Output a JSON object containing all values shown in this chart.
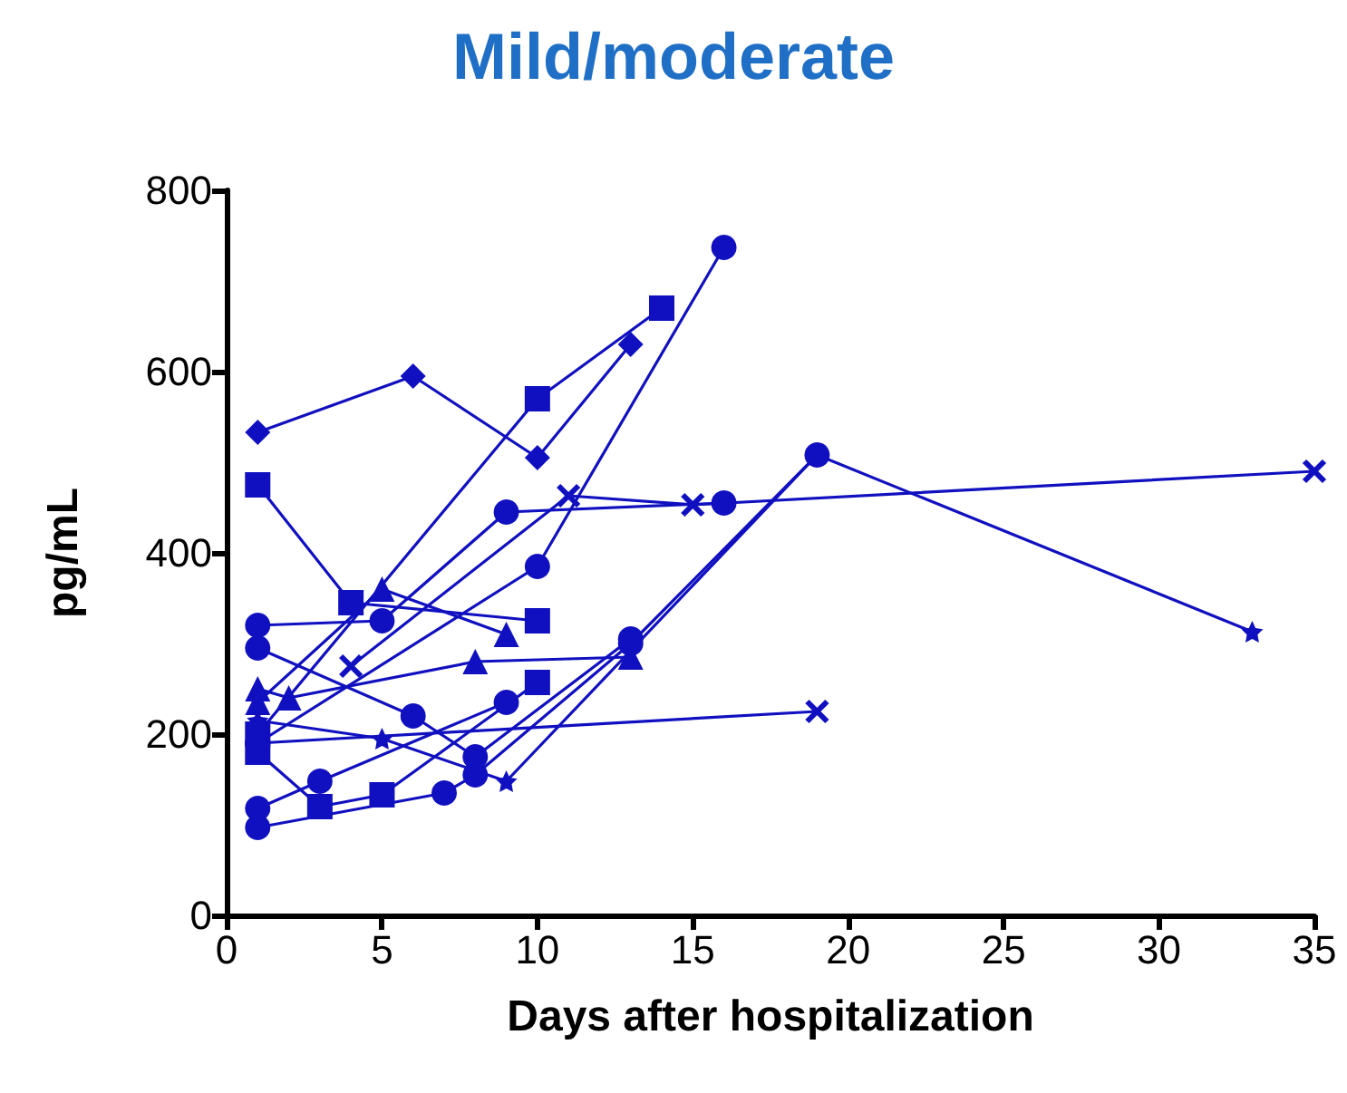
{
  "chart_data": {
    "type": "line",
    "title": "Mild/moderate",
    "xlabel": "Days after hospitalization",
    "ylabel": "pg/mL",
    "xlim": [
      0,
      35
    ],
    "xticks": [
      0,
      5,
      10,
      15,
      20,
      25,
      30,
      35
    ],
    "ylim": [
      0,
      800
    ],
    "yticks": [
      0,
      200,
      400,
      600,
      800
    ],
    "grid": false,
    "line_style": "solid",
    "series": [
      {
        "color": "#1010c0",
        "marker": "diamond",
        "x": [
          1,
          6,
          10,
          13
        ],
        "values": [
          533,
          595,
          505,
          630
        ]
      },
      {
        "color": "#1010c0",
        "marker": "square",
        "x": [
          1,
          10,
          14
        ],
        "values": [
          200,
          570,
          670
        ]
      },
      {
        "color": "#1010c0",
        "marker": "square",
        "x": [
          1,
          4,
          10
        ],
        "values": [
          475,
          345,
          325
        ]
      },
      {
        "color": "#1010c0",
        "marker": "circle",
        "x": [
          1,
          10,
          16
        ],
        "values": [
          190,
          385,
          737
        ]
      },
      {
        "color": "#1010c0",
        "marker": "circle",
        "x": [
          1,
          5,
          9,
          16
        ],
        "values": [
          320,
          325,
          445,
          455
        ]
      },
      {
        "color": "#1010c0",
        "marker": "cross",
        "x": [
          4,
          11,
          15,
          35
        ],
        "values": [
          275,
          463,
          453,
          490
        ]
      },
      {
        "color": "#1010c0",
        "marker": "circle",
        "x": [
          1,
          7,
          8,
          13,
          19
        ],
        "values": [
          97,
          135,
          155,
          300,
          508
        ]
      },
      {
        "color": "#1010c0",
        "marker": "star",
        "x": [
          1,
          5,
          9,
          19,
          33
        ],
        "values": [
          215,
          195,
          148,
          508,
          313
        ]
      },
      {
        "color": "#1010c0",
        "marker": "cross",
        "x": [
          1,
          19
        ],
        "values": [
          190,
          225
        ]
      },
      {
        "color": "#1010c0",
        "marker": "triangle",
        "x": [
          1,
          2,
          8,
          13
        ],
        "values": [
          250,
          240,
          280,
          285
        ]
      },
      {
        "color": "#1010c0",
        "marker": "triangle",
        "x": [
          1,
          5,
          9
        ],
        "values": [
          235,
          360,
          310
        ]
      },
      {
        "color": "#1010c0",
        "marker": "square",
        "x": [
          1,
          3,
          5,
          10
        ],
        "values": [
          180,
          120,
          133,
          257
        ]
      },
      {
        "color": "#1010c0",
        "marker": "circle",
        "x": [
          1,
          3,
          9
        ],
        "values": [
          118,
          148,
          235
        ]
      },
      {
        "color": "#1010c0",
        "marker": "circle",
        "x": [
          1,
          6,
          8,
          13
        ],
        "values": [
          295,
          220,
          175,
          305
        ]
      }
    ]
  }
}
